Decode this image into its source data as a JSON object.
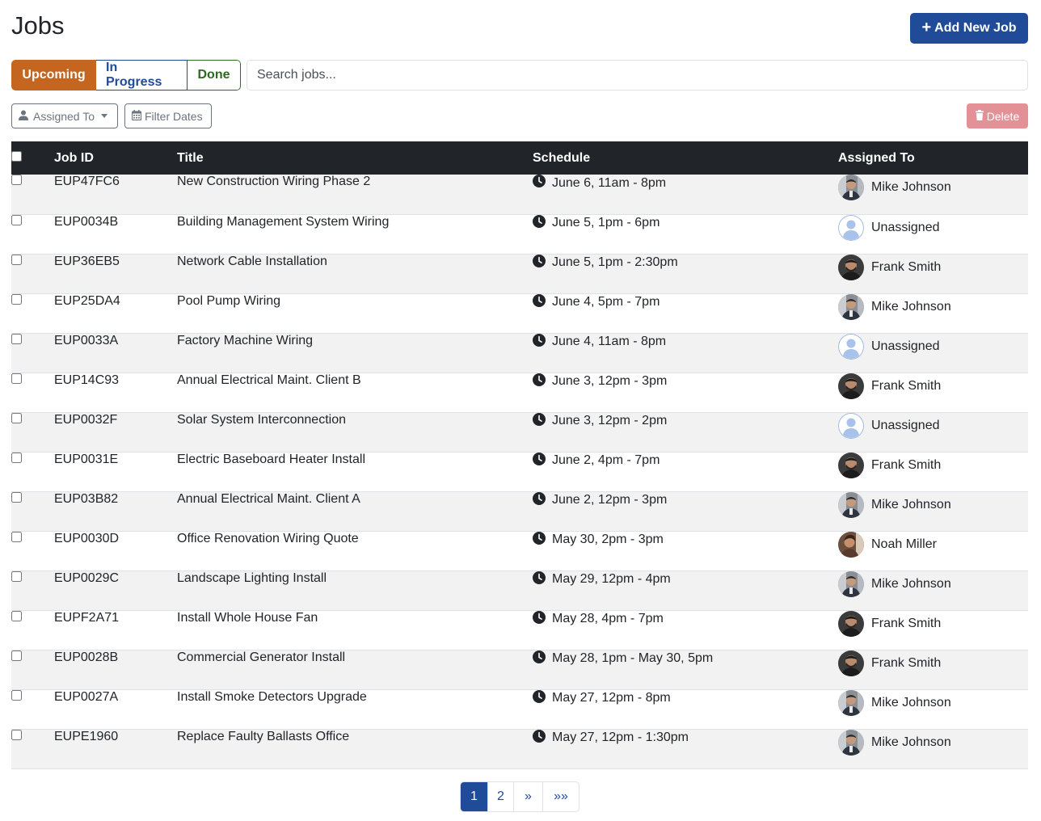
{
  "header": {
    "title": "Jobs",
    "add_button_label": "Add New Job"
  },
  "tabs": [
    {
      "label": "Upcoming",
      "active": true,
      "color": "#c4661f"
    },
    {
      "label": "In Progress",
      "active": false,
      "color": "#1f4b99"
    },
    {
      "label": "Done",
      "active": false,
      "color": "#2b6a1f"
    }
  ],
  "search": {
    "placeholder": "Search jobs...",
    "value": ""
  },
  "filters": {
    "assigned_to_label": "Assigned To",
    "filter_dates_label": "Filter Dates",
    "delete_label": "Delete"
  },
  "table": {
    "headers": {
      "job_id": "Job ID",
      "title": "Title",
      "schedule": "Schedule",
      "assigned_to": "Assigned To"
    },
    "rows": [
      {
        "job_id": "EUP47FC6",
        "title": "New Construction Wiring Phase 2",
        "schedule": "June 6, 11am - 8pm",
        "assigned_to": "Mike Johnson",
        "avatar": "mike"
      },
      {
        "job_id": "EUP0034B",
        "title": "Building Management System Wiring",
        "schedule": "June 5, 1pm - 6pm",
        "assigned_to": "Unassigned",
        "avatar": "none"
      },
      {
        "job_id": "EUP36EB5",
        "title": "Network Cable Installation",
        "schedule": "June 5, 1pm - 2:30pm",
        "assigned_to": "Frank Smith",
        "avatar": "frank"
      },
      {
        "job_id": "EUP25DA4",
        "title": "Pool Pump Wiring",
        "schedule": "June 4, 5pm - 7pm",
        "assigned_to": "Mike Johnson",
        "avatar": "mike"
      },
      {
        "job_id": "EUP0033A",
        "title": "Factory Machine Wiring",
        "schedule": "June 4, 11am - 8pm",
        "assigned_to": "Unassigned",
        "avatar": "none"
      },
      {
        "job_id": "EUP14C93",
        "title": "Annual Electrical Maint. Client B",
        "schedule": "June 3, 12pm - 3pm",
        "assigned_to": "Frank Smith",
        "avatar": "frank"
      },
      {
        "job_id": "EUP0032F",
        "title": "Solar System Interconnection",
        "schedule": "June 3, 12pm - 2pm",
        "assigned_to": "Unassigned",
        "avatar": "none"
      },
      {
        "job_id": "EUP0031E",
        "title": "Electric Baseboard Heater Install",
        "schedule": "June 2, 4pm - 7pm",
        "assigned_to": "Frank Smith",
        "avatar": "frank"
      },
      {
        "job_id": "EUP03B82",
        "title": "Annual Electrical Maint. Client A",
        "schedule": "June 2, 12pm - 3pm",
        "assigned_to": "Mike Johnson",
        "avatar": "mike"
      },
      {
        "job_id": "EUP0030D",
        "title": "Office Renovation Wiring Quote",
        "schedule": "May 30, 2pm - 3pm",
        "assigned_to": "Noah Miller",
        "avatar": "noah"
      },
      {
        "job_id": "EUP0029C",
        "title": "Landscape Lighting Install",
        "schedule": "May 29, 12pm - 4pm",
        "assigned_to": "Mike Johnson",
        "avatar": "mike"
      },
      {
        "job_id": "EUPF2A71",
        "title": "Install Whole House Fan",
        "schedule": "May 28, 4pm - 7pm",
        "assigned_to": "Frank Smith",
        "avatar": "frank"
      },
      {
        "job_id": "EUP0028B",
        "title": "Commercial Generator Install",
        "schedule": "May 28, 1pm - May 30, 5pm",
        "assigned_to": "Frank Smith",
        "avatar": "frank"
      },
      {
        "job_id": "EUP0027A",
        "title": "Install Smoke Detectors Upgrade",
        "schedule": "May 27, 12pm - 8pm",
        "assigned_to": "Mike Johnson",
        "avatar": "mike"
      },
      {
        "job_id": "EUPE1960",
        "title": "Replace Faulty Ballasts Office",
        "schedule": "May 27, 12pm - 1:30pm",
        "assigned_to": "Mike Johnson",
        "avatar": "mike"
      }
    ]
  },
  "pagination": {
    "pages": [
      "1",
      "2"
    ],
    "current": "1",
    "next": "»",
    "last": "»»"
  },
  "colors": {
    "primary": "#1f4b99",
    "upcoming": "#c4661f",
    "done": "#2b6a1f",
    "danger_disabled": "#e39097",
    "table_header": "#212529"
  }
}
